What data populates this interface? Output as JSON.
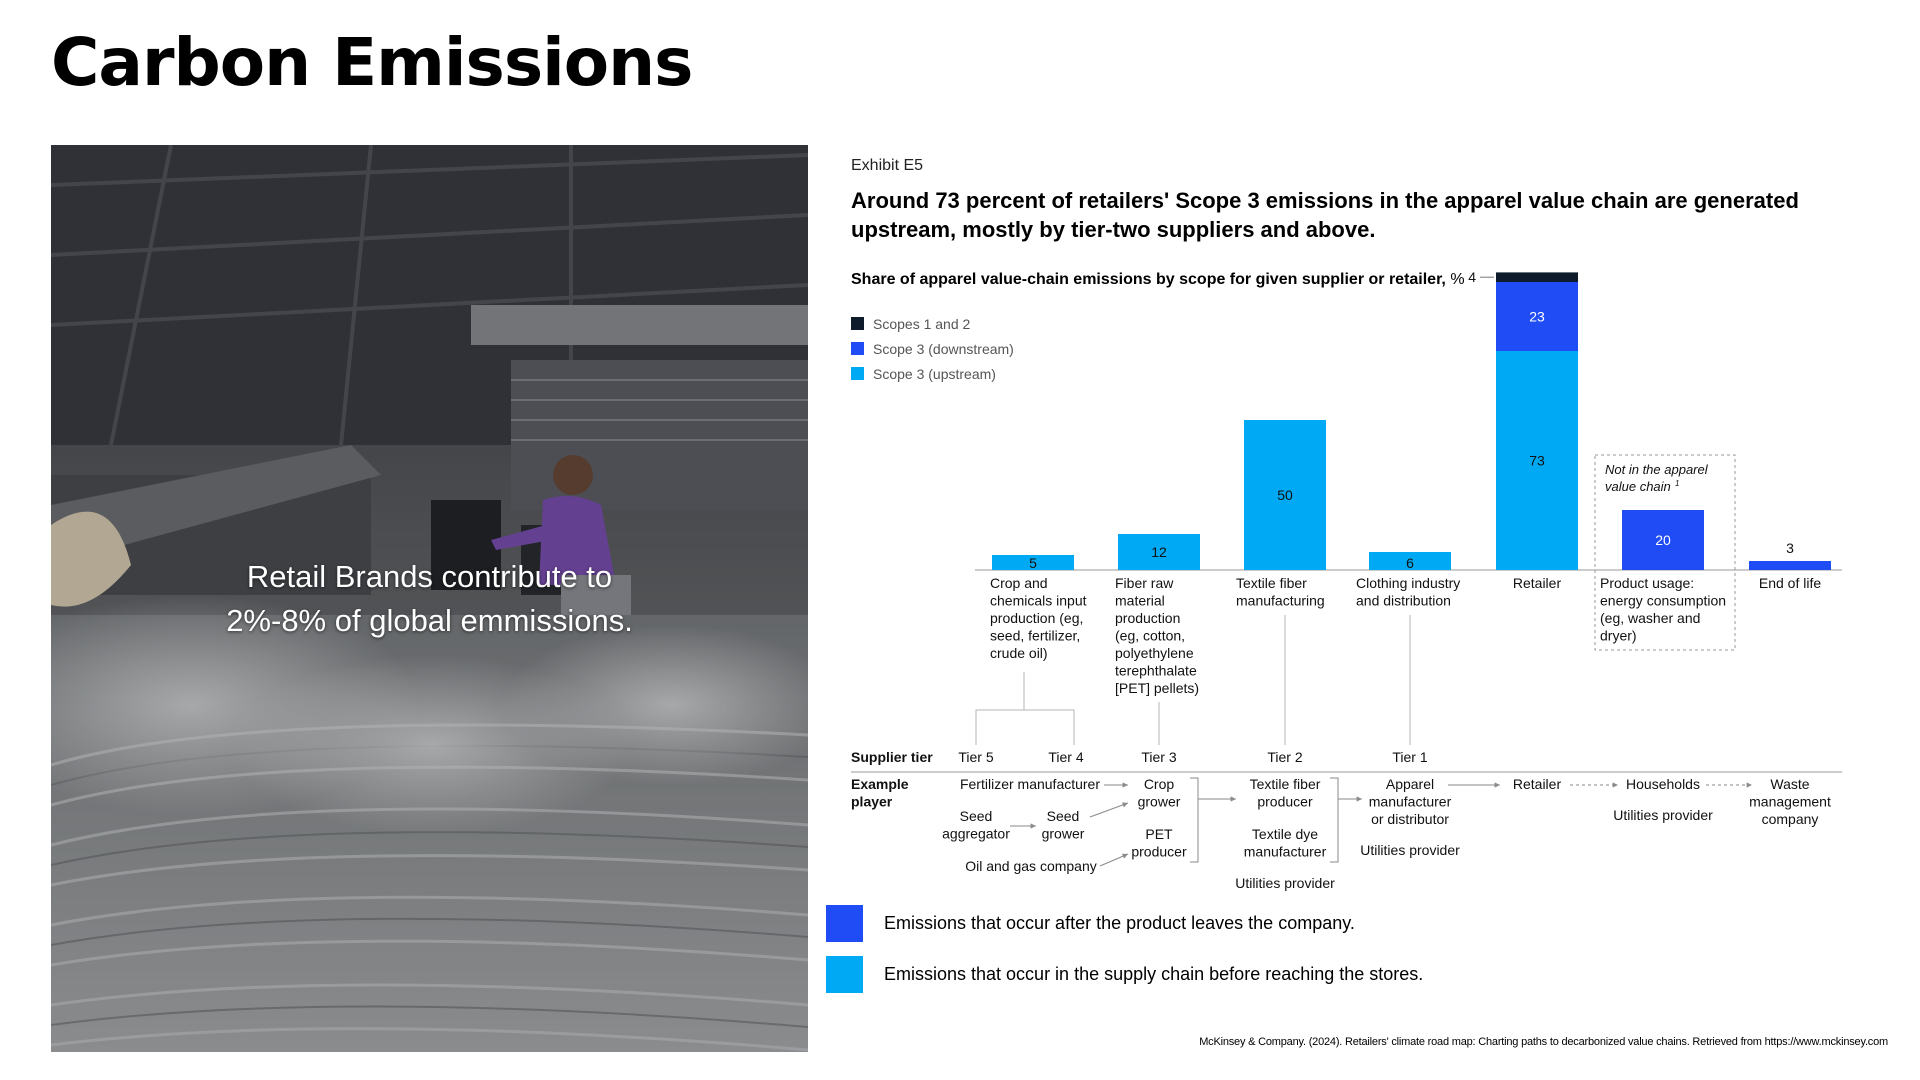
{
  "slide": {
    "title": "Carbon Emissions",
    "photo_caption_line1": "Retail Brands contribute to",
    "photo_caption_line2": "2%-8% of global emmissions.",
    "source": "McKinsey & Company. (2024). Retailers' climate road map: Charting paths to decarbonized value chains. Retrieved from https://www.mckinsey.com"
  },
  "exhibit": {
    "label": "Exhibit E5",
    "headline": "Around 73 percent of retailers' Scope 3 emissions in the apparel value chain are generated upstream, mostly by tier-two suppliers and above.",
    "subtitle_bold": "Share of apparel value-chain emissions by scope for given supplier or retailer,",
    "subtitle_unit": " %"
  },
  "colors": {
    "scope12": "#0d1b2a",
    "downstream": "#1f4cf5",
    "upstream": "#00a9f4"
  },
  "chart_data": {
    "type": "bar",
    "stacked": true,
    "legend": [
      "Scopes 1 and 2",
      "Scope 3 (downstream)",
      "Scope 3 (upstream)"
    ],
    "categories": [
      [
        "Crop and",
        "chemicals input",
        "production (eg,",
        "seed, fertilizer,",
        "crude oil)"
      ],
      [
        "Fiber raw",
        "material",
        "production",
        "(eg, cotton,",
        "polyethylene",
        "terephthalate",
        "[PET] pellets)"
      ],
      [
        "Textile fiber",
        "manufacturing"
      ],
      [
        "Clothing industry",
        "and distribution"
      ],
      [
        "Retailer"
      ],
      [
        "Product usage:",
        "energy consumption",
        "(eg, washer and",
        "dryer)"
      ],
      [
        "End of life"
      ]
    ],
    "series": [
      {
        "name": "Scope 3 (upstream)",
        "values": [
          5,
          12,
          50,
          6,
          73,
          0,
          0
        ]
      },
      {
        "name": "Scope 3 (downstream)",
        "values": [
          0,
          0,
          0,
          0,
          23,
          20,
          3
        ]
      },
      {
        "name": "Scopes 1 and 2",
        "values": [
          0,
          0,
          0,
          0,
          4,
          0,
          0
        ]
      }
    ],
    "data_labels": [
      "5",
      "12",
      "50",
      "6",
      "73",
      "23",
      "4",
      "20",
      "3"
    ],
    "annotation": [
      "Not in the apparel",
      "value chain"
    ],
    "annotation_sup": "1"
  },
  "tiers": {
    "header": "Supplier tier",
    "labels": [
      "Tier 5",
      "Tier 4",
      "Tier 3",
      "Tier 2",
      "Tier 1"
    ]
  },
  "players": {
    "header": [
      "Example",
      "player"
    ],
    "items": [
      [
        "Fertilizer manufacturer"
      ],
      [
        "Seed",
        "aggregator"
      ],
      [
        "Seed",
        "grower"
      ],
      [
        "Oil and gas company"
      ],
      [
        "Crop",
        "grower"
      ],
      [
        "PET",
        "producer"
      ],
      [
        "Textile fiber",
        "producer"
      ],
      [
        "Textile dye",
        "manufacturer"
      ],
      [
        "Utilities provider"
      ],
      [
        "Apparel",
        "manufacturer",
        "or distributor"
      ],
      [
        "Utilities provider"
      ],
      [
        "Retailer"
      ],
      [
        "Households"
      ],
      [
        "Utilities provider"
      ],
      [
        "Waste",
        "management",
        "company"
      ]
    ]
  },
  "footer_legend": [
    {
      "text": "Emissions that occur after the product leaves the company.",
      "color": "#1f4cf5"
    },
    {
      "text": "Emissions that occur in the supply chain before reaching the stores.",
      "color": "#00a9f4"
    }
  ]
}
